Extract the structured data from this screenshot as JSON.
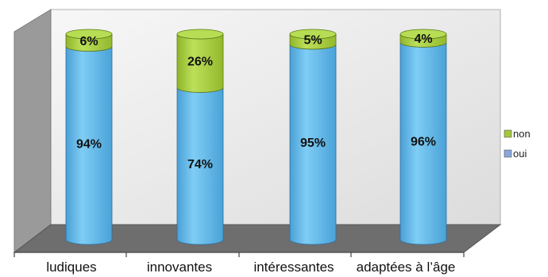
{
  "chart_data": {
    "type": "bar",
    "stacked": true,
    "style": "3d-cylinder",
    "categories": [
      "ludiques",
      "innovantes",
      "intéressantes",
      "adaptées à l’âge"
    ],
    "series": [
      {
        "name": "oui",
        "values": [
          94,
          74,
          95,
          96
        ],
        "labels": [
          "94%",
          "74%",
          "95%",
          "96%"
        ]
      },
      {
        "name": "non",
        "values": [
          6,
          26,
          5,
          4
        ],
        "labels": [
          "6%",
          "26%",
          "5%",
          "4%"
        ]
      }
    ],
    "ylim": [
      0,
      100
    ],
    "grid": false,
    "legend_position": "right",
    "colors": {
      "oui": "#5fb4e6",
      "non": "#a4c83c"
    }
  }
}
